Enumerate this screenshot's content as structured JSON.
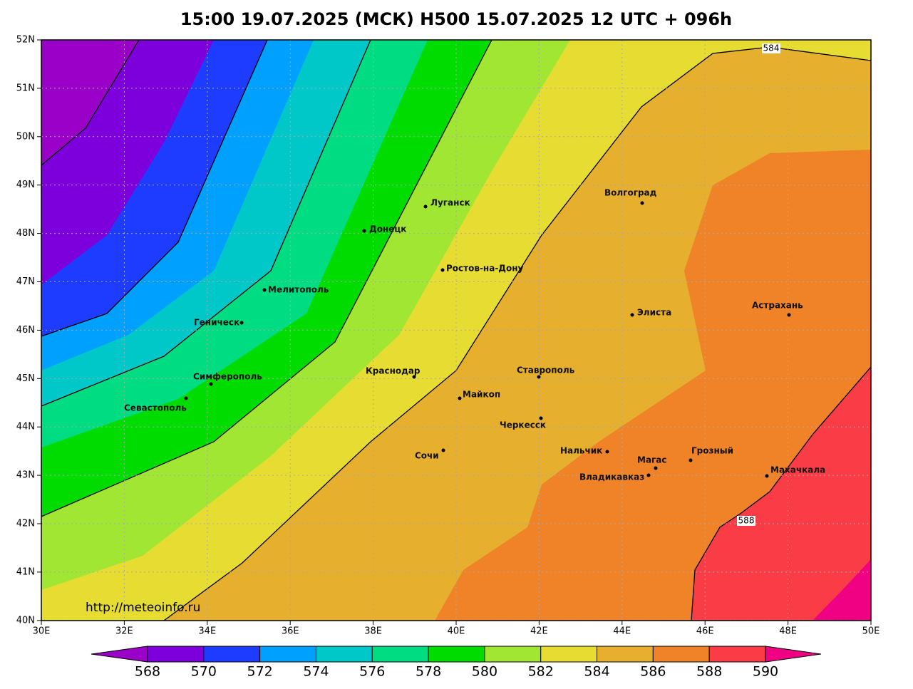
{
  "title": "15:00 19.07.2025 (МСК) H500  15.07.2025 12 UTC + 096h",
  "map": {
    "lat_labels": [
      "52N",
      "51N",
      "50N",
      "49N",
      "48N",
      "47N",
      "46N",
      "45N",
      "44N",
      "43N",
      "42N",
      "41N",
      "40N"
    ],
    "lon_labels": [
      "30E",
      "32E",
      "34E",
      "36E",
      "38E",
      "40E",
      "42E",
      "44E",
      "46E",
      "48E",
      "50E"
    ],
    "cities": [
      "Луганск",
      "Донецк",
      "Ростов-на-Дону",
      "Волгоград",
      "Мелитополь",
      "Геническ",
      "Элиста",
      "Астрахань",
      "Симферополь",
      "Севастополь",
      "Краснодар",
      "Ставрополь",
      "Майкоп",
      "Черкесск",
      "Сочи",
      "Нальчик",
      "Магас",
      "Грозный",
      "Владикавказ",
      "Махачкала"
    ],
    "contour_labels": [
      "584",
      "588"
    ],
    "url": "http://meteoinfo.ru"
  },
  "colorbar": {
    "labels": [
      "568",
      "570",
      "572",
      "574",
      "576",
      "578",
      "580",
      "582",
      "584",
      "586",
      "588",
      "590"
    ]
  }
}
